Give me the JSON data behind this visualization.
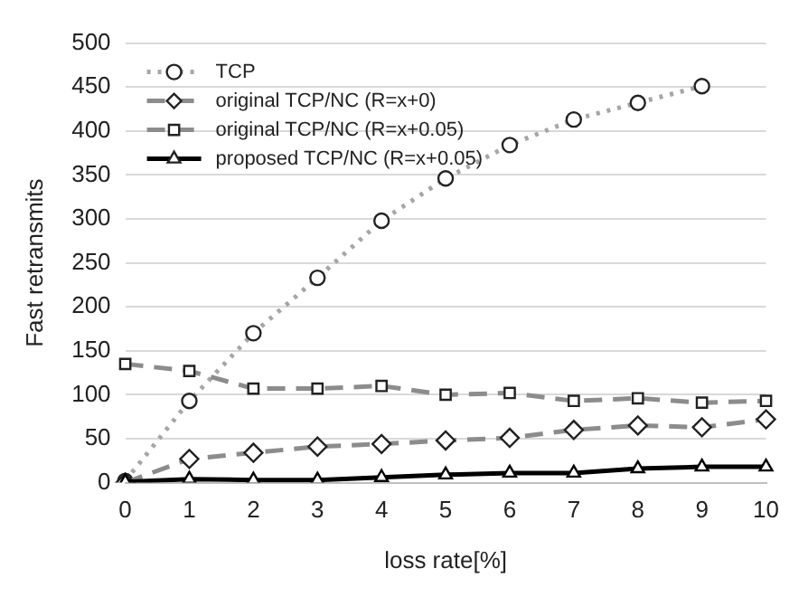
{
  "chart_data": {
    "type": "line",
    "xlabel": "loss rate[%]",
    "ylabel": "Fast retransmits",
    "categories": [
      "0",
      "1",
      "2",
      "3",
      "4",
      "5",
      "6",
      "7",
      "8",
      "9",
      "10"
    ],
    "ylim": [
      0,
      500
    ],
    "yticks": [
      0,
      50,
      100,
      150,
      200,
      250,
      300,
      350,
      400,
      450,
      500
    ],
    "grid": "y",
    "legend": "top left",
    "series": [
      {
        "name": "TCP",
        "color": "#a6a6a6",
        "marker": "circle",
        "line_style": "dotted",
        "values": [
          2,
          93,
          170,
          233,
          298,
          346,
          384,
          413,
          432,
          451,
          null
        ]
      },
      {
        "name": "original TCP/NC (R=x+0)",
        "color": "#8c8c8c",
        "marker": "diamond",
        "line_style": "dashed",
        "values": [
          0,
          27,
          34,
          41,
          44,
          48,
          51,
          60,
          65,
          63,
          72
        ]
      },
      {
        "name": "original TCP/NC (R=x+0.05)",
        "color": "#8c8c8c",
        "marker": "square",
        "line_style": "dashed",
        "values": [
          135,
          127,
          107,
          107,
          110,
          100,
          102,
          93,
          96,
          91,
          93
        ]
      },
      {
        "name": "proposed TCP/NC (R=x+0.05)",
        "color": "#000000",
        "marker": "triangle",
        "line_style": "solid",
        "values": [
          1,
          4,
          3,
          3,
          6,
          9,
          11,
          11,
          16,
          18,
          18
        ]
      }
    ]
  }
}
